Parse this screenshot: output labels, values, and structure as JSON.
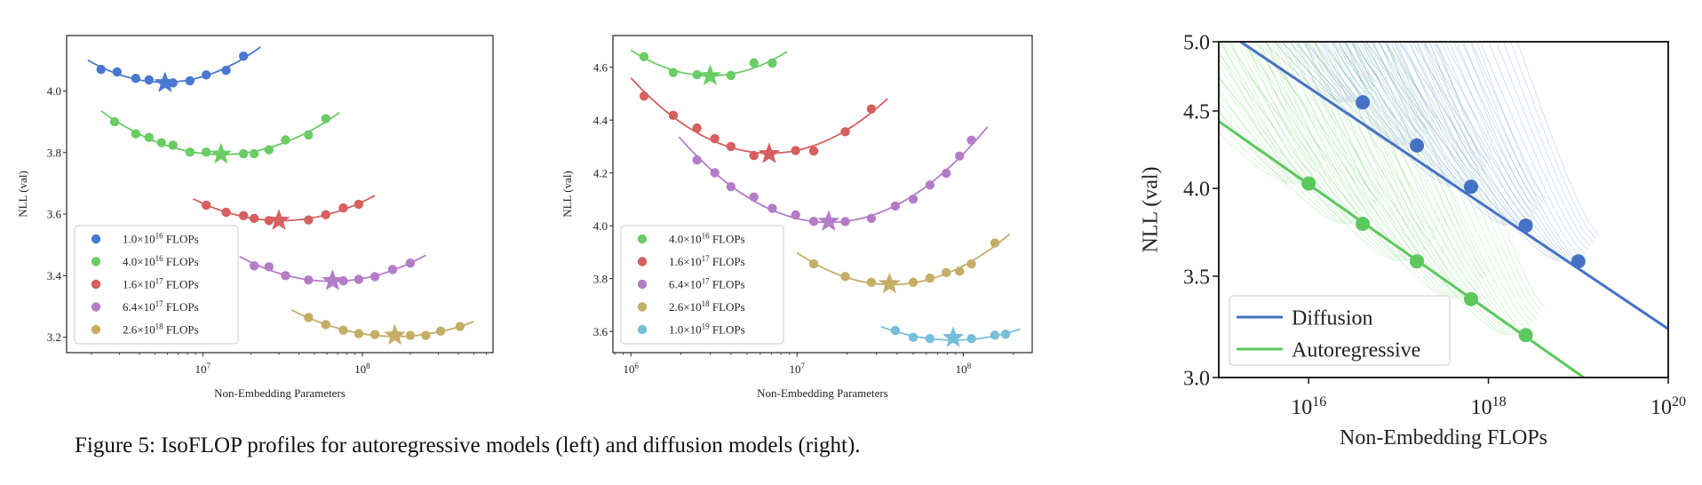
{
  "caption": "Figure 5: IsoFLOP profiles for autoregressive models (left) and diffusion models (right).",
  "colors": {
    "c1e16": "#4878d0",
    "c4e16": "#6acc64",
    "c16e17": "#d65f5f",
    "c64e17": "#b47cc7",
    "c26e18": "#c4ad66",
    "c1e19": "#77bedb",
    "diffusion": "#4472c4",
    "autoregressive": "#5cc85c"
  },
  "chart_data": [
    {
      "type": "scatter",
      "panel": "autoregressive",
      "xlabel": "Non-Embedding Parameters",
      "ylabel": "NLL (val)",
      "xscale": "log",
      "xlim": [
        1400000.0,
        660000000.0
      ],
      "ylim": [
        3.15,
        4.18
      ],
      "xticks": [
        {
          "value": 10000000.0,
          "label": "10^7"
        },
        {
          "value": 100000000.0,
          "label": "10^8"
        }
      ],
      "yticks": [
        3.2,
        3.4,
        3.6,
        3.8,
        4.0
      ],
      "minor_ticks": true,
      "legend": "lower-left",
      "optimum_marker": "star",
      "series": [
        {
          "name": "1.0×10^16 FLOPs",
          "color": "#4878d0",
          "x": [
            2300000.0,
            2900000.0,
            3800000.0,
            4600000.0,
            6500000.0,
            8300000.0,
            10500000.0,
            14000000.0,
            18000000.0
          ],
          "y": [
            4.07,
            4.062,
            4.041,
            4.036,
            4.026,
            4.033,
            4.052,
            4.067,
            4.113
          ],
          "optimum": [
            5800000.0,
            4.026
          ],
          "fit_range": [
            1900000.0,
            23000000.0
          ]
        },
        {
          "name": "4.0×10^16 FLOPs",
          "color": "#6acc64",
          "x": [
            2800000.0,
            3800000.0,
            4600000.0,
            5500000.0,
            6500000.0,
            8300000.0,
            10500000.0,
            18000000.0,
            21000000.0,
            26000000.0,
            33000000.0,
            46000000.0,
            59000000.0
          ],
          "y": [
            3.9,
            3.861,
            3.849,
            3.832,
            3.824,
            3.801,
            3.801,
            3.796,
            3.796,
            3.809,
            3.841,
            3.857,
            3.91
          ],
          "optimum": [
            13000000.0,
            3.794
          ],
          "fit_range": [
            2300000.0,
            72000000.0
          ]
        },
        {
          "name": "1.6×10^17 FLOPs",
          "color": "#d65f5f",
          "x": [
            10500000.0,
            14000000.0,
            18000000.0,
            21000000.0,
            26000000.0,
            46000000.0,
            59000000.0,
            76000000.0,
            95000000.0
          ],
          "y": [
            3.629,
            3.606,
            3.595,
            3.586,
            3.579,
            3.581,
            3.598,
            3.62,
            3.632
          ],
          "optimum": [
            30000000.0,
            3.579
          ],
          "fit_range": [
            8700000.0,
            120000000.0
          ]
        },
        {
          "name": "6.4×10^17 FLOPs",
          "color": "#b47cc7",
          "x": [
            21000000.0,
            26000000.0,
            33000000.0,
            46000000.0,
            76000000.0,
            95000000.0,
            120000000.0,
            155000000.0,
            200000000.0
          ],
          "y": [
            3.432,
            3.429,
            3.4,
            3.386,
            3.383,
            3.388,
            3.397,
            3.42,
            3.441
          ],
          "optimum": [
            65000000.0,
            3.383
          ],
          "fit_range": [
            17000000.0,
            250000000.0
          ]
        },
        {
          "name": "2.6×10^18 FLOPs",
          "color": "#c4ad66",
          "x": [
            46000000.0,
            59000000.0,
            76000000.0,
            95000000.0,
            120000000.0,
            200000000.0,
            250000000.0,
            310000000.0,
            410000000.0
          ],
          "y": [
            3.264,
            3.241,
            3.223,
            3.212,
            3.209,
            3.206,
            3.206,
            3.22,
            3.235
          ],
          "optimum": [
            160000000.0,
            3.206
          ],
          "fit_range": [
            36000000.0,
            500000000.0
          ]
        }
      ]
    },
    {
      "type": "scatter",
      "panel": "diffusion",
      "xlabel": "Non-Embedding Parameters",
      "ylabel": "NLL (val)",
      "xscale": "log",
      "xlim": [
        780000.0,
        260000000.0
      ],
      "ylim": [
        3.52,
        4.72
      ],
      "xticks": [
        {
          "value": 1000000.0,
          "label": "10^6"
        },
        {
          "value": 10000000.0,
          "label": "10^7"
        },
        {
          "value": 100000000.0,
          "label": "10^8"
        }
      ],
      "yticks": [
        3.6,
        3.8,
        4.0,
        4.2,
        4.4,
        4.6
      ],
      "minor_ticks": true,
      "legend": "lower-left",
      "optimum_marker": "star",
      "series": [
        {
          "name": "4.0×10^16 FLOPs",
          "color": "#6acc64",
          "x": [
            1200000.0,
            1800000.0,
            2500000.0,
            4000000.0,
            5500000.0,
            7100000.0
          ],
          "y": [
            4.64,
            4.58,
            4.572,
            4.569,
            4.617,
            4.616
          ],
          "optimum": [
            3000000.0,
            4.567
          ],
          "fit_range": [
            1000000.0,
            8700000.0
          ]
        },
        {
          "name": "1.6×10^17 FLOPs",
          "color": "#d65f5f",
          "x": [
            1200000.0,
            1800000.0,
            2500000.0,
            3200000.0,
            4000000.0,
            5500000.0,
            9800000.0,
            12600000.0,
            19500000.0,
            28000000.0
          ],
          "y": [
            4.491,
            4.418,
            4.37,
            4.33,
            4.3,
            4.266,
            4.285,
            4.283,
            4.356,
            4.442
          ],
          "optimum": [
            6800000.0,
            4.272
          ],
          "fit_range": [
            1000000.0,
            35000000.0
          ]
        },
        {
          "name": "6.4×10^17 FLOPs",
          "color": "#b47cc7",
          "x": [
            2500000.0,
            3200000.0,
            4000000.0,
            5500000.0,
            7100000.0,
            9800000.0,
            12600000.0,
            19500000.0,
            28000000.0,
            39000000.0,
            50000000.0,
            63000000.0,
            79000000.0,
            95000000.0,
            112000000.0
          ],
          "y": [
            4.249,
            4.201,
            4.148,
            4.109,
            4.066,
            4.041,
            4.017,
            4.016,
            4.028,
            4.075,
            4.101,
            4.154,
            4.199,
            4.264,
            4.324
          ],
          "optimum": [
            15500000.0,
            4.016
          ],
          "fit_range": [
            1950000.0,
            140000000.0
          ]
        },
        {
          "name": "2.6×10^18 FLOPs",
          "color": "#c4ad66",
          "x": [
            12600000.0,
            19500000.0,
            28000000.0,
            50000000.0,
            63000000.0,
            79000000.0,
            95000000.0,
            112000000.0,
            155000000.0
          ],
          "y": [
            3.856,
            3.808,
            3.786,
            3.786,
            3.802,
            3.823,
            3.828,
            3.856,
            3.935
          ],
          "optimum": [
            36000000.0,
            3.78
          ],
          "fit_range": [
            10000000.0,
            190000000.0
          ]
        },
        {
          "name": "1.0×10^19 FLOPs",
          "color": "#77bedb",
          "x": [
            39000000.0,
            50000000.0,
            63000000.0,
            112000000.0,
            155000000.0,
            180000000.0
          ],
          "y": [
            3.604,
            3.578,
            3.573,
            3.573,
            3.586,
            3.59
          ],
          "optimum": [
            87000000.0,
            3.576
          ],
          "fit_range": [
            32000000.0,
            220000000.0
          ]
        }
      ]
    },
    {
      "type": "line",
      "panel": "frontier",
      "xlabel": "Non-Embedding FLOPs",
      "ylabel": "NLL (val)",
      "xscale": "log",
      "yscale": "log",
      "xlim": [
        1000000000000000.0,
        1e+20
      ],
      "ylim": [
        3.0,
        5.0
      ],
      "xticks": [
        {
          "value": 1e+16,
          "label": "10^16"
        },
        {
          "value": 1e+18,
          "label": "10^18"
        },
        {
          "value": 1e+20,
          "label": "10^20"
        }
      ],
      "yticks": [
        3.0,
        3.5,
        4.0,
        4.5,
        5.0
      ],
      "ytick_labels": [
        "3.0",
        "3.5",
        "4.0",
        "4.5",
        "5.0"
      ],
      "legend": "lower-left",
      "series": [
        {
          "name": "Diffusion",
          "color": "#4472c4",
          "x": [
            4e+16,
            1.6e+17,
            6.4e+17,
            2.6e+18,
            1e+19
          ],
          "y": [
            4.56,
            4.27,
            4.01,
            3.78,
            3.58
          ],
          "fit_line": {
            "x": [
              1750000000000000.0,
              1e+20
            ],
            "y": [
              5.0,
              3.23
            ]
          }
        },
        {
          "name": "Autoregressive",
          "color": "#5cc85c",
          "x": [
            1e+16,
            4e+16,
            1.6e+17,
            6.4e+17,
            2.6e+18
          ],
          "y": [
            4.03,
            3.79,
            3.58,
            3.38,
            3.2
          ],
          "fit_line": {
            "x": [
              1000000000000000.0,
              1.15e+19
            ],
            "y": [
              4.43,
              3.0
            ]
          }
        }
      ]
    }
  ]
}
